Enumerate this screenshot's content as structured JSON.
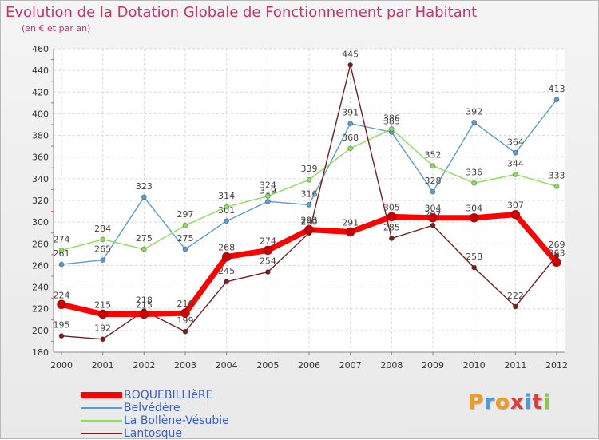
{
  "title": "Evolution de la Dotation Globale de Fonctionnement par Habitant",
  "subtitle": "(en € et par an)",
  "brand": {
    "letters": [
      "P",
      "r",
      "o",
      "x",
      "i",
      "t",
      "i"
    ],
    "colors": [
      "#f29a1f",
      "#4a9be0",
      "#f29a1f",
      "#e23b3b",
      "#4a9be0",
      "#e23b3b",
      "#8cc63f"
    ]
  },
  "chart_data": {
    "type": "line",
    "categories": [
      "2000",
      "2001",
      "2002",
      "2003",
      "2004",
      "2005",
      "2006",
      "2007",
      "2008",
      "2009",
      "2010",
      "2011",
      "2012"
    ],
    "ylim": [
      180,
      460
    ],
    "yticks": [
      "180",
      "200",
      "220",
      "240",
      "260",
      "280",
      "300",
      "320",
      "340",
      "360",
      "380",
      "400",
      "420",
      "440",
      "460"
    ],
    "grid": true,
    "legend_position": "bottom-left",
    "series": [
      {
        "name": "ROQUEBILLIèRE",
        "color": "#ff0000",
        "values": [
          224,
          215,
          215,
          216,
          268,
          274,
          293,
          291,
          305,
          304,
          304,
          307,
          263
        ]
      },
      {
        "name": "Belvédère",
        "color": "#5b9bd5",
        "values": [
          261,
          265,
          323,
          275,
          301,
          319,
          316,
          391,
          383,
          328,
          392,
          364,
          413
        ]
      },
      {
        "name": "La Bollène-Vésubie",
        "color": "#8edc5a",
        "values": [
          274,
          284,
          275,
          297,
          314,
          324,
          339,
          368,
          386,
          352,
          336,
          344,
          333
        ]
      },
      {
        "name": "Lantosque",
        "color": "#7a1e1e",
        "values": [
          195,
          192,
          218,
          199,
          245,
          254,
          290,
          445,
          285,
          297,
          258,
          222,
          269
        ]
      }
    ]
  }
}
